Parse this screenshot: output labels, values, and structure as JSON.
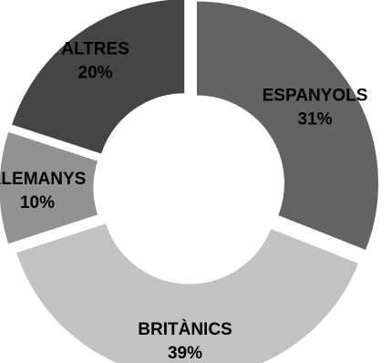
{
  "chart_data": {
    "type": "pie",
    "title": "",
    "categories": [
      "ESPANYOLS",
      "BRITÀNICS",
      "ALEMANYS",
      "ALTRES"
    ],
    "values": [
      31,
      39,
      10,
      20
    ],
    "value_labels": [
      "31%",
      "39%",
      "10%",
      "20%"
    ],
    "colors": [
      "#636363",
      "#c2c2c2",
      "#929292",
      "#454545"
    ],
    "exploded": true,
    "style": "donut",
    "legend": "none"
  }
}
